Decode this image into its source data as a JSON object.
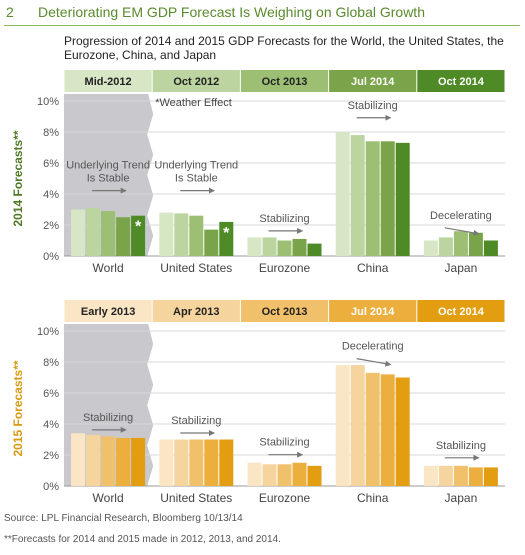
{
  "header": {
    "number": "2",
    "title": "Deteriorating EM GDP Forecast Is Weighing on Global Growth"
  },
  "subtitle": "Progression of 2014 and 2015 GDP Forecasts for the World, the United States, the Eurozone, China, and Japan",
  "footer": {
    "source": "Source: LPL Financial Research, Bloomberg   10/13/14",
    "footnote": "**Forecasts for 2014 and 2015 made in 2012, 2013, and 2014."
  },
  "colors": {
    "accent_green": "#5a8b2e",
    "accent_gold": "#e8a20a",
    "shade_gray": "#c9c9cd"
  },
  "chart_data": [
    {
      "type": "bar",
      "ylabel": "2014 Forecasts**",
      "ylim": [
        0,
        10
      ],
      "yticks": [
        "0%",
        "2%",
        "4%",
        "6%",
        "8%",
        "10%"
      ],
      "grid": true,
      "categories": [
        "World",
        "United States",
        "Eurozone",
        "China",
        "Japan"
      ],
      "forecast_dates": [
        "Mid-2012",
        "Oct 2012",
        "Oct 2013",
        "Jul 2014",
        "Oct 2014"
      ],
      "date_colors": [
        "#d7e6c5",
        "#bcd49f",
        "#9dbf74",
        "#79a449",
        "#4e8a25"
      ],
      "series": [
        {
          "name": "Mid-2012",
          "values": [
            3.0,
            2.8,
            1.2,
            8.0,
            1.0
          ]
        },
        {
          "name": "Oct 2012",
          "values": [
            3.1,
            2.75,
            1.2,
            7.8,
            1.2
          ]
        },
        {
          "name": "Oct 2013",
          "values": [
            2.9,
            2.6,
            1.0,
            7.4,
            1.6
          ]
        },
        {
          "name": "Jul 2014",
          "values": [
            2.5,
            1.7,
            1.1,
            7.4,
            1.5
          ]
        },
        {
          "name": "Oct 2014",
          "values": [
            2.6,
            2.2,
            0.8,
            7.3,
            1.0
          ]
        }
      ],
      "markers": [
        {
          "category": "World",
          "series": "Oct 2014",
          "text": "*"
        },
        {
          "category": "United States",
          "series": "Oct 2014",
          "text": "*"
        }
      ],
      "annotations": [
        {
          "category": "World",
          "text": "Underlying Trend Is Stable",
          "at": 4.8,
          "arrow": "flat"
        },
        {
          "category": "United States",
          "text": "Underlying Trend Is Stable",
          "at": 4.8,
          "arrow": "flat"
        },
        {
          "category": "Eurozone",
          "text": "Stabilizing",
          "at": 2.2,
          "arrow": "flat"
        },
        {
          "category": "China",
          "text": "Stabilizing",
          "at": 9.5,
          "arrow": "flat"
        },
        {
          "category": "Japan",
          "text": "Decelerating",
          "at": 2.4,
          "arrow": "down"
        }
      ],
      "note": "*Weather Effect"
    },
    {
      "type": "bar",
      "ylabel": "2015 Forecasts**",
      "ylim": [
        0,
        10
      ],
      "yticks": [
        "0%",
        "2%",
        "4%",
        "6%",
        "8%",
        "10%"
      ],
      "grid": true,
      "categories": [
        "World",
        "United States",
        "Eurozone",
        "China",
        "Japan"
      ],
      "forecast_dates": [
        "Early 2013",
        "Apr 2013",
        "Oct 2013",
        "Jul 2014",
        "Oct 2014"
      ],
      "date_colors": [
        "#fae6c5",
        "#f6d49d",
        "#f1c06b",
        "#ecae3c",
        "#e39d10"
      ],
      "series": [
        {
          "name": "Early 2013",
          "values": [
            3.4,
            3.0,
            1.5,
            7.8,
            1.3
          ]
        },
        {
          "name": "Apr 2013",
          "values": [
            3.3,
            3.0,
            1.4,
            7.8,
            1.3
          ]
        },
        {
          "name": "Oct 2013",
          "values": [
            3.2,
            3.0,
            1.4,
            7.3,
            1.3
          ]
        },
        {
          "name": "Jul 2014",
          "values": [
            3.1,
            3.0,
            1.5,
            7.2,
            1.2
          ]
        },
        {
          "name": "Oct 2014",
          "values": [
            3.1,
            3.0,
            1.3,
            7.0,
            1.2
          ]
        }
      ],
      "annotations": [
        {
          "category": "World",
          "text": "Stabilizing",
          "at": 4.2,
          "arrow": "flat"
        },
        {
          "category": "United States",
          "text": "Stabilizing",
          "at": 4.0,
          "arrow": "flat"
        },
        {
          "category": "Eurozone",
          "text": "Stabilizing",
          "at": 2.6,
          "arrow": "flat"
        },
        {
          "category": "China",
          "text": "Decelerating",
          "at": 8.8,
          "arrow": "down"
        },
        {
          "category": "Japan",
          "text": "Stabilizing",
          "at": 2.4,
          "arrow": "flat"
        }
      ]
    }
  ]
}
